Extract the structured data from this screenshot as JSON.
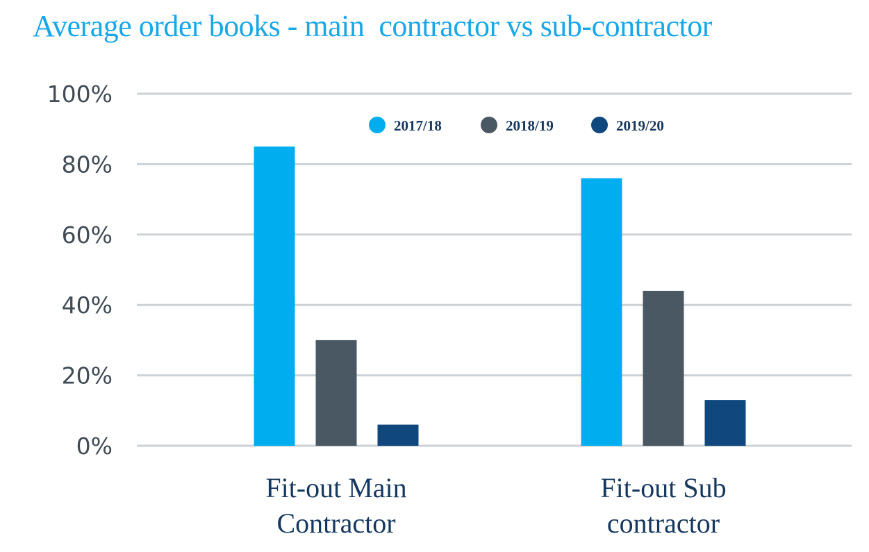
{
  "chart_data": {
    "type": "bar",
    "title": "Average order books - main  contractor vs sub-contractor",
    "categories": [
      [
        "Fit-out Main",
        "Contractor"
      ],
      [
        "Fit-out Sub",
        "contractor"
      ]
    ],
    "series": [
      {
        "name": "2017/18",
        "color": "#00aeef",
        "values": [
          85,
          76
        ]
      },
      {
        "name": "2018/19",
        "color": "#4a5863",
        "values": [
          30,
          44
        ]
      },
      {
        "name": "2019/20",
        "color": "#10477d",
        "values": [
          6,
          13
        ]
      }
    ],
    "ylim": [
      0,
      100
    ],
    "yticks": [
      0,
      20,
      40,
      60,
      80,
      100
    ],
    "ytick_labels": [
      "0%",
      "20%",
      "40%",
      "60%",
      "80%",
      "100%"
    ],
    "grid": true,
    "legend_position": "top"
  }
}
